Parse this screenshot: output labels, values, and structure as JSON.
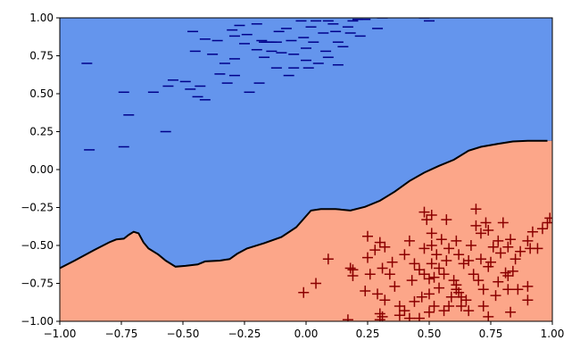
{
  "chart_data": {
    "type": "scatter",
    "title": "",
    "xlabel": "",
    "ylabel": "",
    "xlim": [
      -1.0,
      1.0
    ],
    "ylim": [
      -1.0,
      1.0
    ],
    "grid": false,
    "x_tick_labels": [
      "−1.00",
      "−0.75",
      "−0.50",
      "−0.25",
      "0.00",
      "0.25",
      "0.50",
      "0.75",
      "1.00"
    ],
    "y_tick_labels": [
      "1.00",
      "0.75",
      "0.50",
      "0.25",
      "0.00",
      "−0.25",
      "−0.50",
      "−0.75",
      "−1.00"
    ],
    "x_ticks": [
      -1.0,
      -0.75,
      -0.5,
      -0.25,
      0.0,
      0.25,
      0.5,
      0.75,
      1.0
    ],
    "y_ticks": [
      1.0,
      0.75,
      0.5,
      0.25,
      0.0,
      -0.25,
      -0.5,
      -0.75,
      -1.0
    ],
    "region_colors": {
      "negative": "#6495ed",
      "positive": "#fca689"
    },
    "boundary_color": "#000000",
    "decision_boundary": [
      [
        -1.0,
        -0.65
      ],
      [
        -0.94,
        -0.6
      ],
      [
        -0.86,
        -0.53
      ],
      [
        -0.8,
        -0.48
      ],
      [
        -0.77,
        -0.46
      ],
      [
        -0.74,
        -0.455
      ],
      [
        -0.72,
        -0.43
      ],
      [
        -0.7,
        -0.41
      ],
      [
        -0.68,
        -0.42
      ],
      [
        -0.66,
        -0.48
      ],
      [
        -0.64,
        -0.52
      ],
      [
        -0.6,
        -0.56
      ],
      [
        -0.57,
        -0.6
      ],
      [
        -0.53,
        -0.64
      ],
      [
        -0.49,
        -0.635
      ],
      [
        -0.44,
        -0.625
      ],
      [
        -0.41,
        -0.605
      ],
      [
        -0.35,
        -0.6
      ],
      [
        -0.31,
        -0.59
      ],
      [
        -0.28,
        -0.555
      ],
      [
        -0.24,
        -0.52
      ],
      [
        -0.17,
        -0.485
      ],
      [
        -0.1,
        -0.445
      ],
      [
        -0.04,
        -0.38
      ],
      [
        0.02,
        -0.27
      ],
      [
        0.06,
        -0.26
      ],
      [
        0.12,
        -0.26
      ],
      [
        0.18,
        -0.27
      ],
      [
        0.24,
        -0.245
      ],
      [
        0.3,
        -0.205
      ],
      [
        0.36,
        -0.145
      ],
      [
        0.42,
        -0.075
      ],
      [
        0.48,
        -0.02
      ],
      [
        0.54,
        0.025
      ],
      [
        0.6,
        0.065
      ],
      [
        0.66,
        0.125
      ],
      [
        0.71,
        0.15
      ],
      [
        0.78,
        0.17
      ],
      [
        0.84,
        0.185
      ],
      [
        0.9,
        0.19
      ],
      [
        0.98,
        0.19
      ]
    ],
    "series": [
      {
        "marker": "minus",
        "color": "#00008b",
        "points": [
          [
            -0.89,
            0.7
          ],
          [
            -0.88,
            0.13
          ],
          [
            -0.74,
            0.15
          ],
          [
            -0.74,
            0.51
          ],
          [
            -0.72,
            0.36
          ],
          [
            -0.62,
            0.51
          ],
          [
            -0.57,
            0.25
          ],
          [
            -0.56,
            0.55
          ],
          [
            -0.54,
            0.59
          ],
          [
            -0.49,
            0.58
          ],
          [
            -0.47,
            0.53
          ],
          [
            -0.46,
            0.91
          ],
          [
            -0.45,
            0.78
          ],
          [
            -0.44,
            0.48
          ],
          [
            -0.43,
            0.55
          ],
          [
            -0.41,
            0.46
          ],
          [
            -0.41,
            0.86
          ],
          [
            -0.38,
            0.76
          ],
          [
            -0.36,
            0.85
          ],
          [
            -0.35,
            0.63
          ],
          [
            -0.33,
            0.7
          ],
          [
            -0.32,
            0.57
          ],
          [
            -0.3,
            0.92
          ],
          [
            -0.29,
            0.62
          ],
          [
            -0.29,
            0.88
          ],
          [
            -0.29,
            0.73
          ],
          [
            -0.27,
            0.95
          ],
          [
            -0.25,
            0.83
          ],
          [
            -0.24,
            0.89
          ],
          [
            -0.23,
            0.51
          ],
          [
            -0.2,
            0.79
          ],
          [
            -0.2,
            0.96
          ],
          [
            -0.19,
            0.57
          ],
          [
            -0.18,
            0.85
          ],
          [
            -0.17,
            0.84
          ],
          [
            -0.17,
            0.74
          ],
          [
            -0.16,
            0.84
          ],
          [
            -0.15,
            0.84
          ],
          [
            -0.14,
            0.84
          ],
          [
            -0.14,
            0.78
          ],
          [
            -0.12,
            0.84
          ],
          [
            -0.12,
            0.67
          ],
          [
            -0.11,
            0.91
          ],
          [
            -0.1,
            0.77
          ],
          [
            -0.08,
            0.93
          ],
          [
            -0.07,
            0.62
          ],
          [
            -0.06,
            0.85
          ],
          [
            -0.05,
            0.67
          ],
          [
            -0.05,
            0.76
          ],
          [
            -0.02,
            0.98
          ],
          [
            -0.01,
            0.87
          ],
          [
            0.0,
            0.8
          ],
          [
            0.0,
            0.72
          ],
          [
            0.01,
            0.67
          ],
          [
            0.02,
            0.94
          ],
          [
            0.03,
            0.84
          ],
          [
            0.04,
            0.98
          ],
          [
            0.05,
            0.7
          ],
          [
            0.07,
            0.9
          ],
          [
            0.08,
            0.78
          ],
          [
            0.09,
            0.98
          ],
          [
            0.09,
            0.74
          ],
          [
            0.11,
            0.96
          ],
          [
            0.12,
            0.91
          ],
          [
            0.13,
            0.84
          ],
          [
            0.13,
            0.69
          ],
          [
            0.15,
            0.81
          ],
          [
            0.17,
            0.94
          ],
          [
            0.18,
            0.9
          ],
          [
            0.19,
            0.98
          ],
          [
            0.21,
            0.99
          ],
          [
            0.22,
            0.88
          ],
          [
            0.24,
            0.99
          ],
          [
            0.29,
            0.93
          ],
          [
            0.31,
            1.0
          ],
          [
            0.48,
            1.0
          ],
          [
            0.5,
            0.98
          ]
        ]
      },
      {
        "marker": "plus",
        "color": "#8b0000",
        "points": [
          [
            -0.01,
            -0.81
          ],
          [
            0.04,
            -0.75
          ],
          [
            0.09,
            -0.59
          ],
          [
            0.17,
            -0.99
          ],
          [
            0.18,
            -0.65
          ],
          [
            0.19,
            -0.7
          ],
          [
            0.19,
            -0.66
          ],
          [
            0.24,
            -0.8
          ],
          [
            0.25,
            -0.58
          ],
          [
            0.25,
            -0.44
          ],
          [
            0.26,
            -0.69
          ],
          [
            0.28,
            -0.53
          ],
          [
            0.29,
            -0.82
          ],
          [
            0.3,
            -0.48
          ],
          [
            0.3,
            -0.95
          ],
          [
            0.3,
            -0.99
          ],
          [
            0.31,
            -0.97
          ],
          [
            0.32,
            -0.86
          ],
          [
            0.31,
            -0.65
          ],
          [
            0.32,
            -0.51
          ],
          [
            0.34,
            -0.69
          ],
          [
            0.35,
            -0.61
          ],
          [
            0.36,
            -0.77
          ],
          [
            0.38,
            -0.9
          ],
          [
            0.38,
            -0.96
          ],
          [
            0.4,
            -0.56
          ],
          [
            0.4,
            -0.93
          ],
          [
            0.42,
            -0.98
          ],
          [
            0.43,
            -0.73
          ],
          [
            0.42,
            -0.47
          ],
          [
            0.44,
            -0.62
          ],
          [
            0.44,
            -0.87
          ],
          [
            0.46,
            -0.66
          ],
          [
            0.46,
            -0.98
          ],
          [
            0.47,
            -0.84
          ],
          [
            0.48,
            -0.28
          ],
          [
            0.48,
            -0.52
          ],
          [
            0.48,
            -0.69
          ],
          [
            0.49,
            -0.33
          ],
          [
            0.5,
            -0.72
          ],
          [
            0.5,
            -0.94
          ],
          [
            0.5,
            -0.82
          ],
          [
            0.51,
            -0.3
          ],
          [
            0.51,
            -0.42
          ],
          [
            0.51,
            -0.5
          ],
          [
            0.51,
            -0.62
          ],
          [
            0.52,
            -0.71
          ],
          [
            0.52,
            -0.9
          ],
          [
            0.53,
            -0.56
          ],
          [
            0.54,
            -0.78
          ],
          [
            0.54,
            -0.65
          ],
          [
            0.55,
            -0.46
          ],
          [
            0.56,
            -0.69
          ],
          [
            0.56,
            -0.93
          ],
          [
            0.57,
            -0.33
          ],
          [
            0.57,
            -0.6
          ],
          [
            0.58,
            -0.9
          ],
          [
            0.58,
            -0.52
          ],
          [
            0.59,
            -0.84
          ],
          [
            0.6,
            -0.73
          ],
          [
            0.61,
            -0.47
          ],
          [
            0.61,
            -0.76
          ],
          [
            0.61,
            -0.79
          ],
          [
            0.62,
            -0.56
          ],
          [
            0.62,
            -0.81
          ],
          [
            0.63,
            -0.84
          ],
          [
            0.63,
            -0.9
          ],
          [
            0.64,
            -0.62
          ],
          [
            0.65,
            -0.86
          ],
          [
            0.66,
            -0.6
          ],
          [
            0.66,
            -0.93
          ],
          [
            0.67,
            -0.5
          ],
          [
            0.68,
            -0.69
          ],
          [
            0.69,
            -0.26
          ],
          [
            0.69,
            -0.37
          ],
          [
            0.7,
            -0.73
          ],
          [
            0.71,
            -0.42
          ],
          [
            0.71,
            -0.59
          ],
          [
            0.72,
            -0.79
          ],
          [
            0.72,
            -0.9
          ],
          [
            0.73,
            -0.35
          ],
          [
            0.74,
            -0.4
          ],
          [
            0.74,
            -0.64
          ],
          [
            0.74,
            -0.97
          ],
          [
            0.75,
            -0.61
          ],
          [
            0.76,
            -0.51
          ],
          [
            0.77,
            -0.83
          ],
          [
            0.78,
            -0.47
          ],
          [
            0.78,
            -0.74
          ],
          [
            0.79,
            -0.55
          ],
          [
            0.8,
            -0.35
          ],
          [
            0.81,
            -0.68
          ],
          [
            0.82,
            -0.51
          ],
          [
            0.82,
            -0.7
          ],
          [
            0.82,
            -0.79
          ],
          [
            0.83,
            -0.46
          ],
          [
            0.83,
            -0.94
          ],
          [
            0.84,
            -0.67
          ],
          [
            0.85,
            -0.59
          ],
          [
            0.86,
            -0.79
          ],
          [
            0.87,
            -0.54
          ],
          [
            0.9,
            -0.47
          ],
          [
            0.9,
            -0.86
          ],
          [
            0.9,
            -0.77
          ],
          [
            0.91,
            -0.52
          ],
          [
            0.92,
            -0.41
          ],
          [
            0.94,
            -0.52
          ],
          [
            0.96,
            -0.39
          ],
          [
            0.98,
            -0.35
          ],
          [
            0.99,
            -0.32
          ]
        ]
      }
    ]
  }
}
